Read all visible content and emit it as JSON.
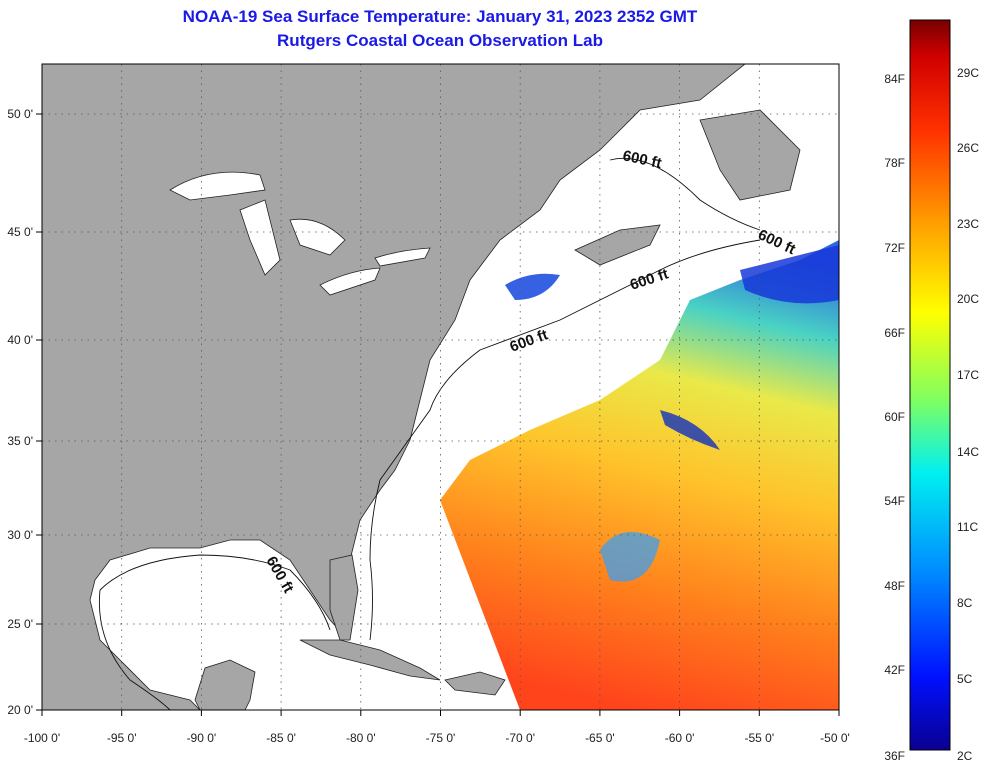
{
  "title": {
    "line1": "NOAA-19 Sea Surface Temperature:  January 31, 2023 2352 GMT",
    "line2": "Rutgers Coastal Ocean Observation Lab"
  },
  "map": {
    "lon_range": [
      -100,
      -50
    ],
    "lat_range": [
      20,
      52.5
    ],
    "lon_ticks": [
      "-100 0'",
      "-95 0'",
      "-90 0'",
      "-85 0'",
      "-80 0'",
      "-75 0'",
      "-70 0'",
      "-65 0'",
      "-60 0'",
      "-55 0'",
      "-50 0'"
    ],
    "lat_ticks": [
      "50 0'",
      "45 0'",
      "40 0'",
      "35 0'",
      "30 0'",
      "25 0'",
      "20 0'"
    ],
    "contour_labels": [
      "600 ft",
      "600 ft",
      "600 ft",
      "600 ft",
      "600 ft"
    ],
    "land_color": "#a6a6a6",
    "grid": "dotted"
  },
  "colorbar": {
    "fahrenheit_labels": [
      "84F",
      "78F",
      "72F",
      "66F",
      "60F",
      "54F",
      "48F",
      "42F",
      "36F"
    ],
    "celsius_labels": [
      "29C",
      "26C",
      "23C",
      "20C",
      "17C",
      "14C",
      "11C",
      "8C",
      "5C",
      "2C"
    ],
    "colors": [
      "#7a0000",
      "#e00000",
      "#ff5a00",
      "#ffb000",
      "#ffff00",
      "#a0ff40",
      "#00ffe0",
      "#00a0ff",
      "#0040ff",
      "#0000a0"
    ]
  }
}
